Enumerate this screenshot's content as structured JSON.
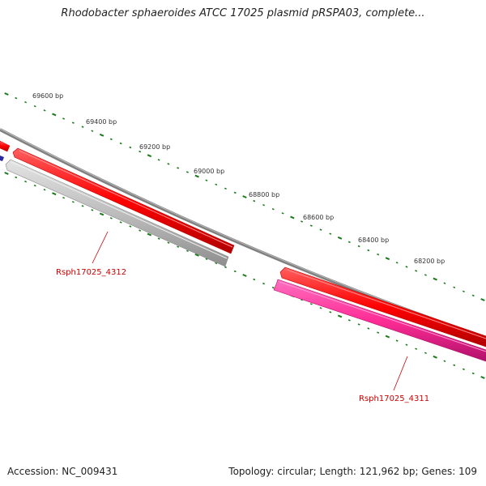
{
  "title": "Rhodobacter sphaeroides ATCC 17025 plasmid pRSPA03, complete...",
  "footer": {
    "accession": "Accession: NC_009431",
    "summary": "Topology: circular; Length: 121,962 bp; Genes: 109"
  },
  "scale_labels": [
    "69600 bp",
    "69400 bp",
    "69200 bp",
    "69000 bp",
    "68800 bp",
    "68600 bp",
    "68400 bp",
    "68200 bp"
  ],
  "genes": [
    {
      "label": "Rsph17025_4312"
    },
    {
      "label": "Rsph17025_4311"
    }
  ],
  "colors": {
    "backbone": "#808080",
    "forward_gene": "#ff0000",
    "reverse_gene_grey": "#c0c0c0",
    "reverse_gene_pink": "#ff2d96",
    "partial_gene_blue": "#2a2aa0",
    "tick": "#1a7a1a",
    "gene_label": "#cc0000"
  }
}
